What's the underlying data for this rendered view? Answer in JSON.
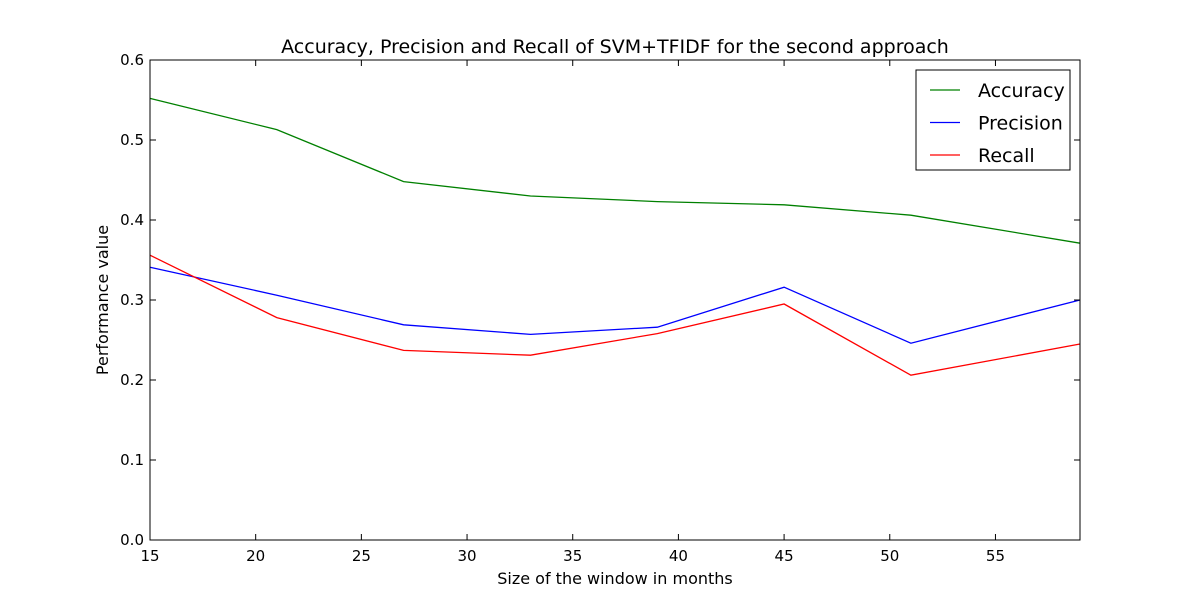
{
  "chart_data": {
    "type": "line",
    "title": "Accuracy, Precision and Recall of SVM+TFIDF for the second approach",
    "xlabel": "Size of the window in months",
    "ylabel": "Performance value",
    "xlim": [
      15,
      59
    ],
    "ylim": [
      0,
      0.6
    ],
    "xticks": [
      15,
      20,
      25,
      30,
      35,
      40,
      45,
      50,
      55
    ],
    "yticks": [
      0.0,
      0.1,
      0.2,
      0.3,
      0.4,
      0.5,
      0.6
    ],
    "xtick_labels": [
      "15",
      "20",
      "25",
      "30",
      "35",
      "40",
      "45",
      "50",
      "55"
    ],
    "ytick_labels": [
      "0.0",
      "0.1",
      "0.2",
      "0.3",
      "0.4",
      "0.5",
      "0.6"
    ],
    "grid": false,
    "legend_position": "top-right",
    "x": [
      15,
      21,
      27,
      33,
      39,
      45,
      51,
      59
    ],
    "series": [
      {
        "name": "Accuracy",
        "color": "#008000",
        "values": [
          0.552,
          0.513,
          0.448,
          0.43,
          0.423,
          0.419,
          0.406,
          0.371
        ]
      },
      {
        "name": "Precision",
        "color": "#0000ff",
        "values": [
          0.341,
          0.306,
          0.269,
          0.257,
          0.266,
          0.316,
          0.246,
          0.3
        ]
      },
      {
        "name": "Recall",
        "color": "#ff0000",
        "values": [
          0.356,
          0.278,
          0.237,
          0.231,
          0.258,
          0.295,
          0.206,
          0.245
        ]
      }
    ]
  }
}
